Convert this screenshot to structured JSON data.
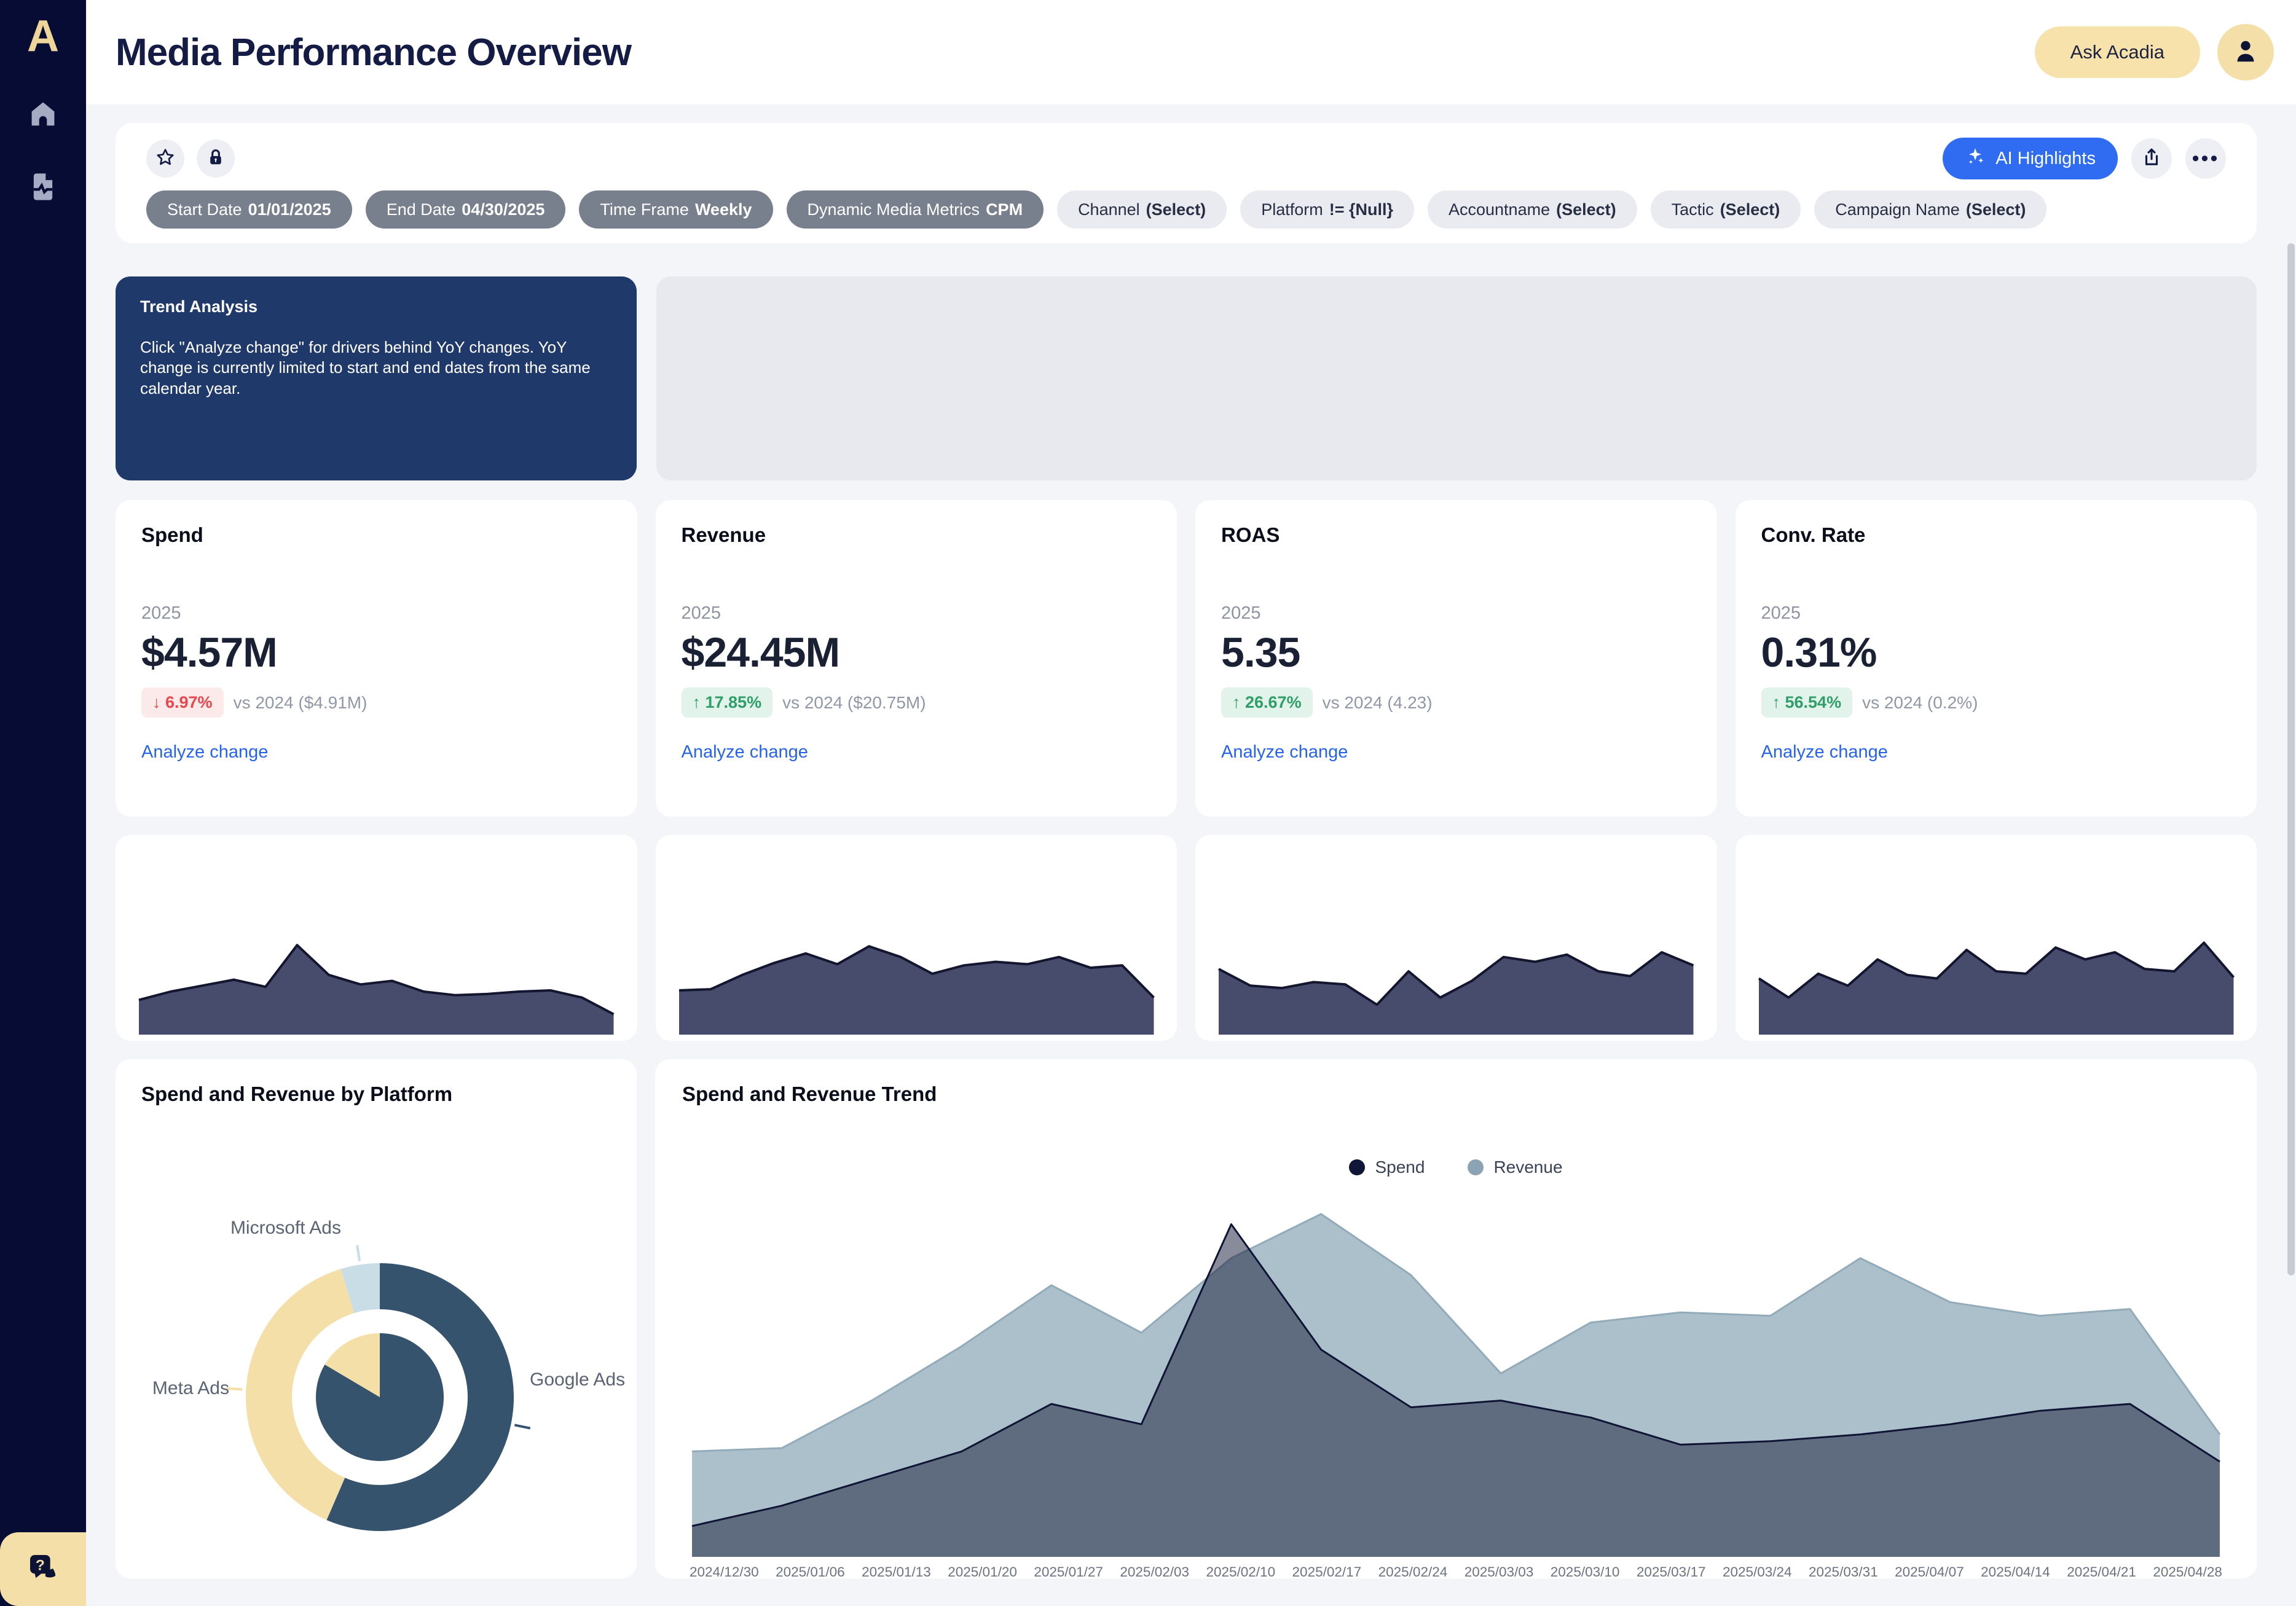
{
  "header": {
    "title": "Media Performance Overview",
    "ask_button": "Ask Acadia"
  },
  "sidebar": {
    "logo_text": "A"
  },
  "filters": {
    "ai_highlights_label": "AI Highlights",
    "applied": [
      {
        "label": "Start Date",
        "value": "01/01/2025"
      },
      {
        "label": "End Date",
        "value": "04/30/2025"
      },
      {
        "label": "Time Frame",
        "value": "Weekly"
      },
      {
        "label": "Dynamic Media Metrics",
        "value": "CPM"
      }
    ],
    "selectable": [
      {
        "label": "Channel",
        "value": "(Select)"
      },
      {
        "label": "Platform",
        "value": "!= {Null}"
      },
      {
        "label": "Accountname",
        "value": "(Select)"
      },
      {
        "label": "Tactic",
        "value": "(Select)"
      },
      {
        "label": "Campaign Name",
        "value": "(Select)"
      }
    ]
  },
  "trend_analysis": {
    "title": "Trend Analysis",
    "body": "Click \"Analyze change\" for drivers behind YoY changes. YoY change is currently limited to start and end dates from the same calendar year."
  },
  "kpis": [
    {
      "title": "Spend",
      "year": "2025",
      "value": "$4.57M",
      "delta": "↓ 6.97%",
      "direction": "down",
      "vs": "vs 2024 ($4.91M)",
      "link": "Analyze change"
    },
    {
      "title": "Revenue",
      "year": "2025",
      "value": "$24.45M",
      "delta": "↑ 17.85%",
      "direction": "up",
      "vs": "vs 2024 ($20.75M)",
      "link": "Analyze change"
    },
    {
      "title": "ROAS",
      "year": "2025",
      "value": "5.35",
      "delta": "↑ 26.67%",
      "direction": "up",
      "vs": "vs 2024 (4.23)",
      "link": "Analyze change"
    },
    {
      "title": "Conv. Rate",
      "year": "2025",
      "value": "0.31%",
      "delta": "↑ 56.54%",
      "direction": "up",
      "vs": "vs 2024 (0.2%)",
      "link": "Analyze change"
    }
  ],
  "colors": {
    "accent_blue": "#2f6cf1",
    "gold": "#f5dfa9",
    "sidebar_navy": "#060c33",
    "trend_card_navy": "#20396b",
    "spark_fill": "#484c6c",
    "spark_stroke": "#14162f"
  },
  "chart_data": [
    {
      "id": "spark-spend",
      "type": "area",
      "title": "Spend weekly sparkline",
      "values": [
        26,
        33,
        38,
        43,
        37,
        72,
        47,
        39,
        42,
        33,
        30,
        31,
        33,
        34,
        28,
        14
      ],
      "fill": "#484c6c",
      "stroke": "#14162f"
    },
    {
      "id": "spark-revenue",
      "type": "area",
      "title": "Revenue weekly sparkline",
      "values": [
        34,
        35,
        47,
        57,
        65,
        56,
        71,
        62,
        48,
        55,
        58,
        56,
        62,
        53,
        55,
        28
      ],
      "fill": "#484c6c",
      "stroke": "#14162f"
    },
    {
      "id": "spark-roas",
      "type": "area",
      "title": "ROAS weekly sparkline",
      "values": [
        52,
        38,
        36,
        41,
        39,
        22,
        50,
        28,
        42,
        62,
        58,
        64,
        50,
        46,
        66,
        55
      ],
      "fill": "#484c6c",
      "stroke": "#14162f"
    },
    {
      "id": "spark-conv",
      "type": "area",
      "title": "Conv. Rate weekly sparkline",
      "values": [
        44,
        28,
        48,
        38,
        60,
        47,
        44,
        68,
        50,
        48,
        70,
        60,
        66,
        52,
        50,
        74,
        45
      ],
      "fill": "#484c6c",
      "stroke": "#14162f"
    },
    {
      "id": "platform-donut",
      "type": "donut-nested",
      "title": "Spend and Revenue by Platform",
      "labels": [
        "Google Ads",
        "Meta Ads",
        "Microsoft Ads"
      ],
      "colors": [
        "#36536e",
        "#f5dfa9",
        "#c9dde7"
      ],
      "outer_values": [
        56.5,
        38.8,
        4.7
      ],
      "inner_values": [
        83.5,
        16.5,
        0
      ]
    },
    {
      "id": "spend-revenue-trend",
      "type": "area-multi",
      "title": "Spend and Revenue Trend",
      "legend_position": "top",
      "x": [
        "2024/12/30",
        "2025/01/06",
        "2025/01/13",
        "2025/01/20",
        "2025/01/27",
        "2025/02/03",
        "2025/02/10",
        "2025/02/17",
        "2025/02/24",
        "2025/03/03",
        "2025/03/10",
        "2025/03/17",
        "2025/03/24",
        "2025/03/31",
        "2025/04/07",
        "2025/04/14",
        "2025/04/21",
        "2025/04/28"
      ],
      "ylim": [
        0,
        100
      ],
      "series": [
        {
          "name": "Revenue",
          "legend_color": "#8ba3b3",
          "fill": "#acc0cb",
          "stroke": "#93abb9",
          "values": [
            30,
            31,
            45,
            61,
            79,
            65,
            87,
            100,
            82,
            53,
            68,
            71,
            70,
            87,
            74,
            70,
            72,
            35
          ]
        },
        {
          "name": "Spend",
          "legend_color": "#101638",
          "fill": "rgba(18,24,54,0.50)",
          "stroke": "#0f1434",
          "values": [
            8,
            14,
            22,
            30,
            44,
            38,
            97,
            60,
            43,
            45,
            40,
            32,
            33,
            35,
            38,
            42,
            44,
            27
          ]
        }
      ]
    }
  ]
}
